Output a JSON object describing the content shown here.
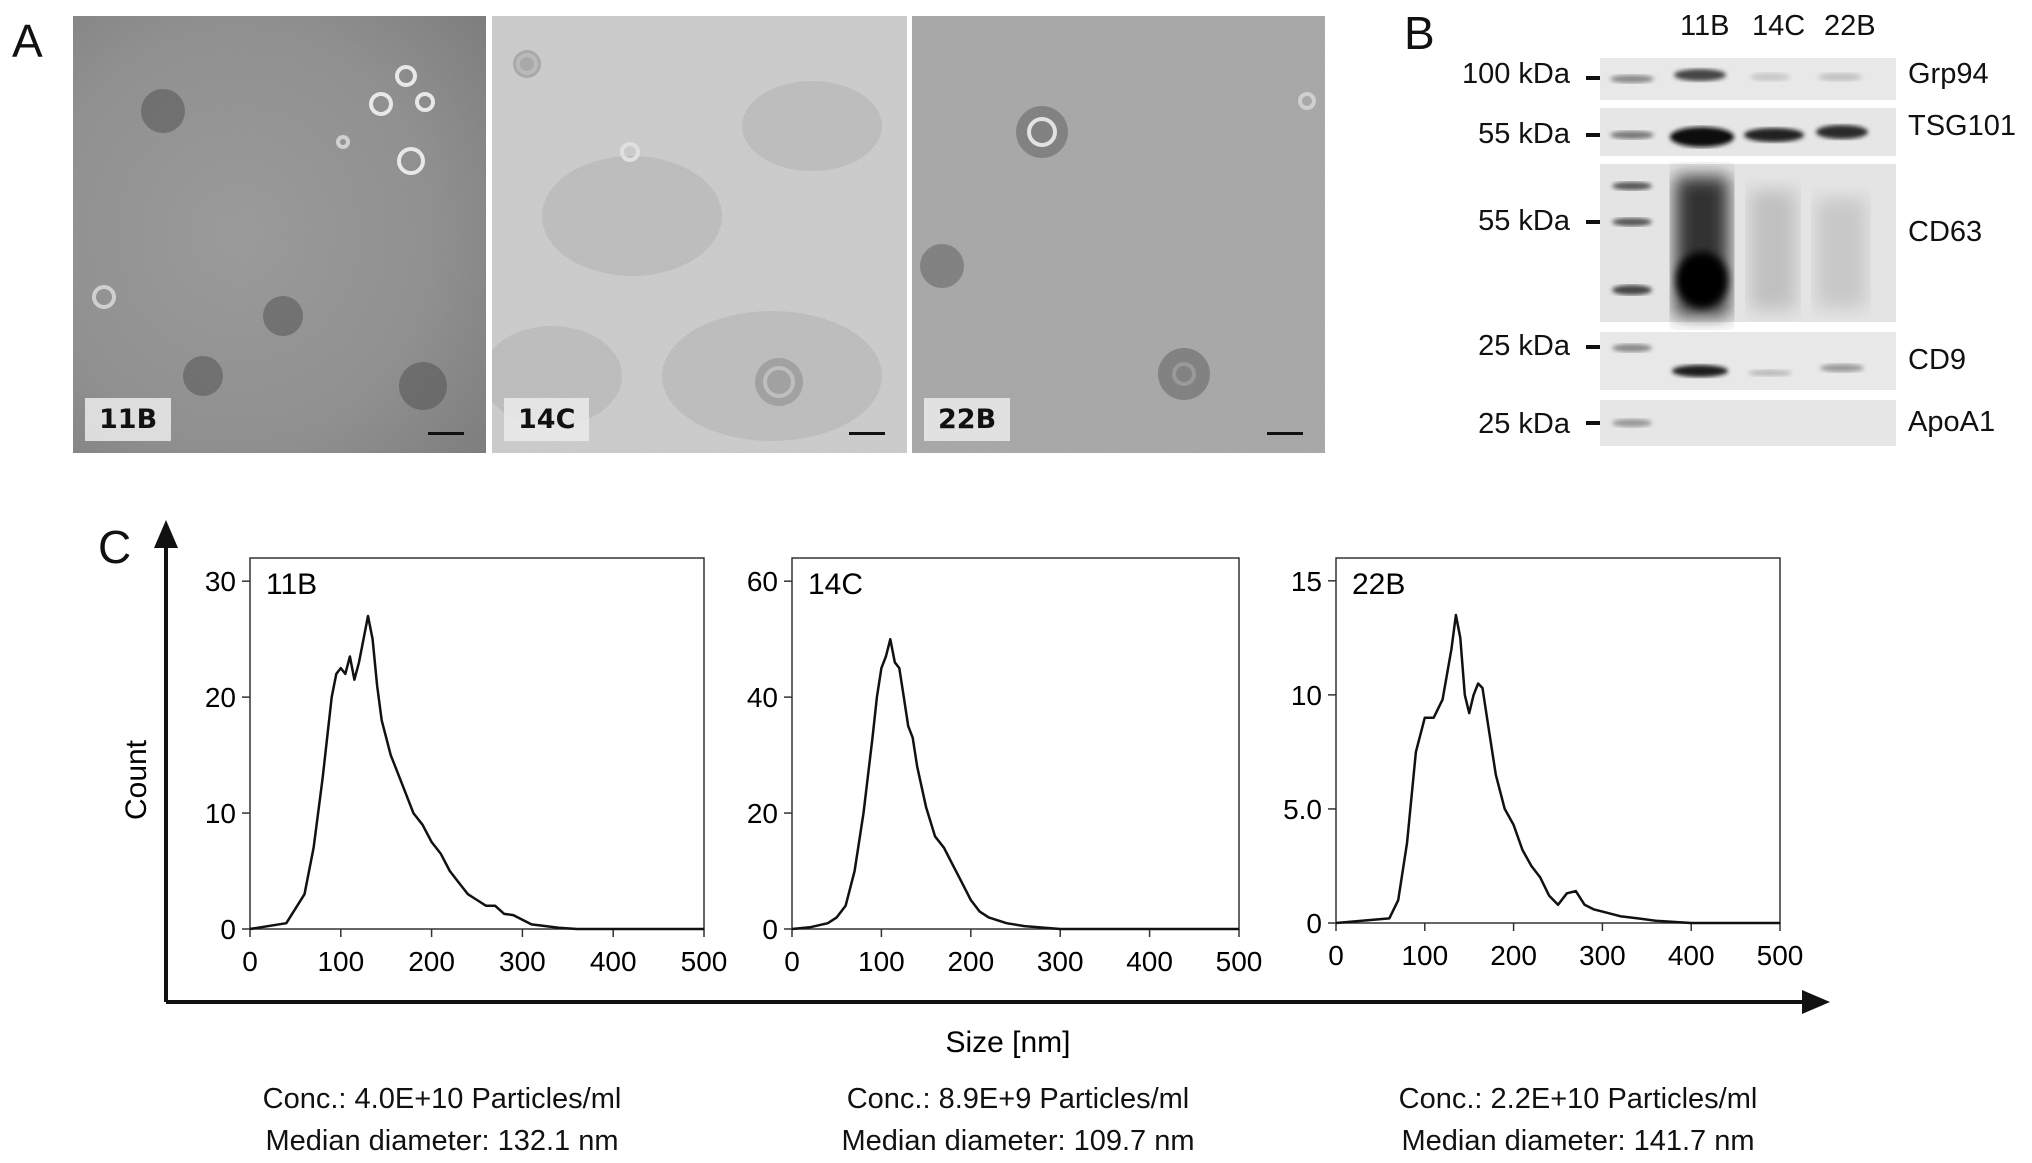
{
  "panels": {
    "a": "A",
    "b": "B",
    "c": "C"
  },
  "tem": {
    "samples": [
      {
        "label": "11B"
      },
      {
        "label": "14C"
      },
      {
        "label": "22B"
      }
    ]
  },
  "western_blot": {
    "lanes": [
      "11B",
      "14C",
      "22B"
    ],
    "bands": [
      {
        "kda": "100 kDa",
        "protein": "Grp94"
      },
      {
        "kda": "55 kDa",
        "protein": "TSG101"
      },
      {
        "kda": "55 kDa",
        "protein": "CD63"
      },
      {
        "kda": "25 kDa",
        "protein": "CD9"
      },
      {
        "kda": "25 kDa",
        "protein": "ApoA1"
      }
    ]
  },
  "nta": {
    "ylabel": "Count",
    "xlabel": "Size [nm]",
    "summaries": [
      {
        "conc": "Conc.: 4.0E+10 Particles/ml",
        "median": "Median diameter: 132.1 nm"
      },
      {
        "conc": "Conc.: 8.9E+9 Particles/ml",
        "median": "Median diameter: 109.7 nm"
      },
      {
        "conc": "Conc.: 2.2E+10 Particles/ml",
        "median": "Median diameter: 141.7 nm"
      }
    ]
  },
  "chart_data": [
    {
      "type": "line",
      "title": "11B",
      "xlabel": "Size [nm]",
      "ylabel": "Count",
      "xlim": [
        0,
        500
      ],
      "ylim": [
        0,
        32
      ],
      "xticks": [
        "0",
        "100",
        "200",
        "300",
        "400",
        "500"
      ],
      "yticks": [
        "0",
        "10",
        "20",
        "30"
      ],
      "ytick_values": [
        0,
        10,
        20,
        30
      ],
      "x": [
        0,
        40,
        60,
        70,
        80,
        90,
        95,
        100,
        105,
        110,
        115,
        120,
        125,
        130,
        135,
        140,
        145,
        150,
        155,
        160,
        170,
        180,
        190,
        200,
        210,
        220,
        230,
        240,
        250,
        260,
        270,
        280,
        290,
        300,
        310,
        320,
        340,
        360,
        400,
        500
      ],
      "y": [
        0,
        0.5,
        3,
        7,
        13,
        20,
        22,
        22.5,
        22,
        23.5,
        21.5,
        23,
        25,
        27,
        25,
        21,
        18,
        16.5,
        15,
        14,
        12,
        10,
        9,
        7.5,
        6.5,
        5,
        4,
        3,
        2.5,
        2,
        2,
        1.3,
        1.2,
        0.8,
        0.4,
        0.3,
        0.1,
        0,
        0,
        0
      ]
    },
    {
      "type": "line",
      "title": "14C",
      "xlabel": "Size [nm]",
      "ylabel": "Count",
      "xlim": [
        0,
        500
      ],
      "ylim": [
        0,
        64
      ],
      "xticks": [
        "0",
        "100",
        "200",
        "300",
        "400",
        "500"
      ],
      "yticks": [
        "0",
        "20",
        "40",
        "60"
      ],
      "ytick_values": [
        0,
        20,
        40,
        60
      ],
      "x": [
        0,
        20,
        40,
        50,
        60,
        70,
        80,
        90,
        95,
        100,
        105,
        110,
        115,
        120,
        125,
        130,
        135,
        140,
        150,
        160,
        170,
        180,
        190,
        200,
        210,
        220,
        240,
        260,
        300,
        500
      ],
      "y": [
        0,
        0.3,
        1,
        2,
        4,
        10,
        20,
        33,
        40,
        45,
        47,
        50,
        46,
        45,
        40,
        35,
        33,
        28,
        21,
        16,
        14,
        11,
        8,
        5,
        3,
        2,
        1,
        0.5,
        0,
        0
      ]
    },
    {
      "type": "line",
      "title": "22B",
      "xlabel": "Size [nm]",
      "ylabel": "Count",
      "xlim": [
        0,
        500
      ],
      "ylim": [
        0,
        16
      ],
      "xticks": [
        "0",
        "100",
        "200",
        "300",
        "400",
        "500"
      ],
      "yticks": [
        "0",
        "5.0",
        "10",
        "15"
      ],
      "ytick_values": [
        0,
        5,
        10,
        15
      ],
      "x": [
        0,
        60,
        70,
        80,
        90,
        100,
        110,
        120,
        130,
        135,
        140,
        145,
        150,
        155,
        160,
        165,
        170,
        180,
        190,
        200,
        210,
        220,
        230,
        240,
        250,
        260,
        270,
        280,
        290,
        300,
        320,
        340,
        360,
        400,
        500
      ],
      "y": [
        0,
        0.2,
        1,
        3.5,
        7.5,
        9,
        9,
        9.8,
        12,
        13.5,
        12.5,
        10,
        9.2,
        10,
        10.5,
        10.3,
        9,
        6.5,
        5,
        4.3,
        3.2,
        2.5,
        2,
        1.2,
        0.8,
        1.3,
        1.4,
        0.8,
        0.6,
        0.5,
        0.3,
        0.2,
        0.1,
        0,
        0
      ]
    }
  ]
}
